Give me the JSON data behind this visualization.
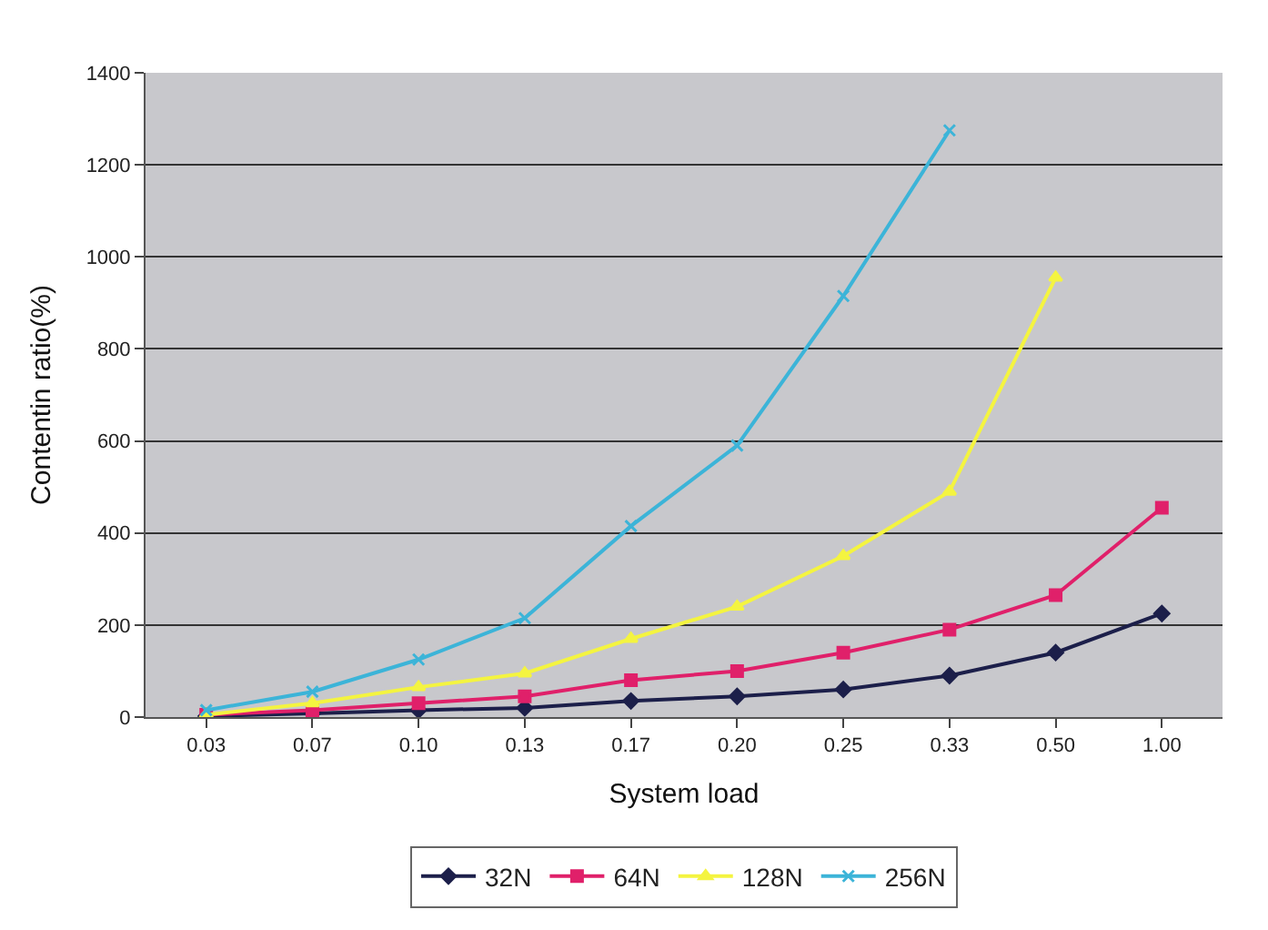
{
  "chart_data": {
    "type": "line",
    "xlabel": "System load",
    "ylabel": "Contentin ratio(%)",
    "categories": [
      "0.03",
      "0.07",
      "0.10",
      "0.13",
      "0.17",
      "0.20",
      "0.25",
      "0.33",
      "0.50",
      "1.00"
    ],
    "series": [
      {
        "name": "32N",
        "color": "#1c1f4a",
        "marker": "diamond",
        "values": [
          2,
          8,
          15,
          20,
          35,
          45,
          60,
          90,
          140,
          225
        ]
      },
      {
        "name": "64N",
        "color": "#e0206a",
        "marker": "square",
        "values": [
          5,
          15,
          30,
          45,
          80,
          100,
          140,
          190,
          265,
          455
        ]
      },
      {
        "name": "128N",
        "color": "#f4f440",
        "marker": "triangle",
        "values": [
          5,
          30,
          65,
          95,
          170,
          240,
          350,
          490,
          955,
          null
        ]
      },
      {
        "name": "256N",
        "color": "#3cb4d8",
        "marker": "cross",
        "values": [
          15,
          55,
          125,
          215,
          415,
          590,
          915,
          1275,
          null,
          null
        ]
      }
    ],
    "ylim": [
      0,
      1400
    ],
    "yticks": [
      0,
      200,
      400,
      600,
      800,
      1000,
      1200,
      1400
    ],
    "grid": "y",
    "legend": "bottom"
  }
}
